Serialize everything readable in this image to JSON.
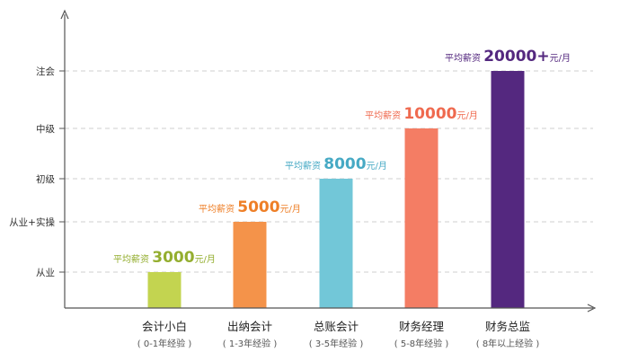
{
  "chart_data": {
    "type": "bar",
    "y_levels": [
      "从业",
      "从业+实操",
      "初级",
      "中级",
      "注会"
    ],
    "bars": [
      {
        "category": "会计小白",
        "experience": "( 0-1年经验 )",
        "level_index": 0,
        "color": "#C3D450",
        "salary": {
          "prefix": "平均薪资",
          "value": "3000",
          "unit": "元/月",
          "color": "#94AE2F"
        }
      },
      {
        "category": "出纳会计",
        "experience": "( 1-3年经验 )",
        "level_index": 1,
        "color": "#F4934A",
        "salary": {
          "prefix": "平均薪资",
          "value": "5000",
          "unit": "元/月",
          "color": "#EE7F27"
        }
      },
      {
        "category": "总账会计",
        "experience": "( 3-5年经验 )",
        "level_index": 2,
        "color": "#72C7D8",
        "salary": {
          "prefix": "平均薪资",
          "value": "8000",
          "unit": "元/月",
          "color": "#46A9C4"
        }
      },
      {
        "category": "财务经理",
        "experience": "( 5-8年经验 )",
        "level_index": 3,
        "color": "#F47D64",
        "salary": {
          "prefix": "平均薪资",
          "value": "10000",
          "unit": "元/月",
          "color": "#EF6A4F"
        }
      },
      {
        "category": "财务总监",
        "experience": "( 8年以上经验 )",
        "level_index": 4,
        "color": "#54287F",
        "salary": {
          "prefix": "平均薪资",
          "value": "20000+",
          "unit": "元/月",
          "color": "#54287F"
        }
      }
    ],
    "grid": "dashed at each level",
    "axis_color": "#555555"
  }
}
